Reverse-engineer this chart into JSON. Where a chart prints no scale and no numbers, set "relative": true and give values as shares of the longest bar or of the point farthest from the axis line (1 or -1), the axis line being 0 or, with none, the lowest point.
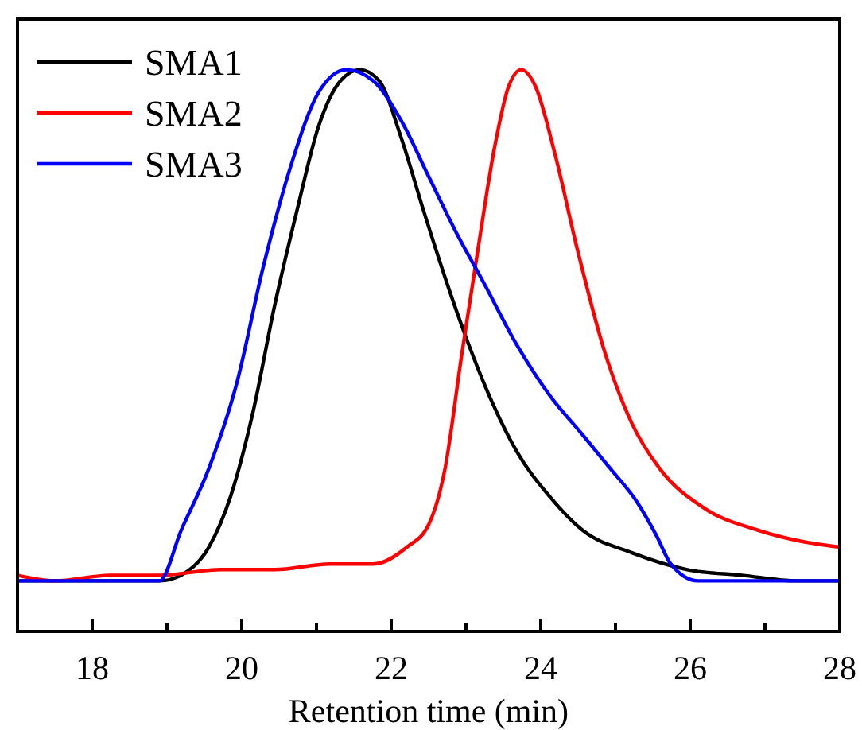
{
  "chart_data": {
    "type": "line",
    "relative": true,
    "xlabel": "Retention time (min)",
    "xlim": [
      17,
      28
    ],
    "xticks": [
      18,
      {
        "value": 19,
        "label": null
      },
      20,
      {
        "value": 21,
        "label": null
      },
      22,
      {
        "value": 23,
        "label": null
      },
      24,
      {
        "value": 25,
        "label": null
      },
      26,
      {
        "value": 27,
        "label": null
      },
      28
    ],
    "legend": "top left",
    "line_style": "solid",
    "series": [
      {
        "name": "SMA1",
        "color": "#000000",
        "x": [
          17,
          18.9,
          19.19,
          19.56,
          19.85,
          20.15,
          20.44,
          20.74,
          21.03,
          21.32,
          21.58,
          21.84,
          22.13,
          22.43,
          22.72,
          23.01,
          23.31,
          23.68,
          24.12,
          24.56,
          25.22,
          25.96,
          26.69,
          27.43,
          28
        ],
        "values": [
          0.09,
          0.09,
          0.1,
          0.15,
          0.24,
          0.39,
          0.58,
          0.75,
          0.9,
          0.98,
          1,
          0.98,
          0.88,
          0.75,
          0.63,
          0.52,
          0.42,
          0.32,
          0.24,
          0.18,
          0.14,
          0.11,
          0.1,
          0.09,
          0.09
        ]
      },
      {
        "name": "SMA2",
        "color": "#ff0000",
        "x": [
          17,
          17.5,
          18.24,
          18.9,
          19.71,
          20.44,
          21.18,
          21.76,
          22.21,
          22.5,
          22.72,
          22.94,
          23.16,
          23.38,
          23.57,
          23.74,
          23.93,
          24.19,
          24.49,
          24.85,
          25.22,
          25.59,
          26.18,
          26.91,
          27.5,
          28
        ],
        "values": [
          0.1,
          0.09,
          0.1,
          0.1,
          0.11,
          0.11,
          0.12,
          0.12,
          0.15,
          0.19,
          0.29,
          0.49,
          0.68,
          0.86,
          0.97,
          1,
          0.97,
          0.85,
          0.68,
          0.5,
          0.37,
          0.29,
          0.22,
          0.18,
          0.16,
          0.15
        ]
      },
      {
        "name": "SMA3",
        "color": "#0000ff",
        "x": [
          17,
          18.9,
          19.19,
          19.56,
          19.93,
          20.29,
          20.66,
          21.03,
          21.4,
          21.76,
          22.13,
          22.5,
          22.87,
          23.24,
          23.68,
          24.12,
          24.56,
          24.93,
          25.29,
          25.55,
          25.74,
          26.1,
          28
        ],
        "values": [
          0.09,
          0.09,
          0.18,
          0.29,
          0.44,
          0.65,
          0.83,
          0.96,
          1,
          0.98,
          0.91,
          0.81,
          0.71,
          0.62,
          0.51,
          0.42,
          0.35,
          0.29,
          0.23,
          0.17,
          0.12,
          0.09,
          0.09
        ]
      }
    ]
  }
}
